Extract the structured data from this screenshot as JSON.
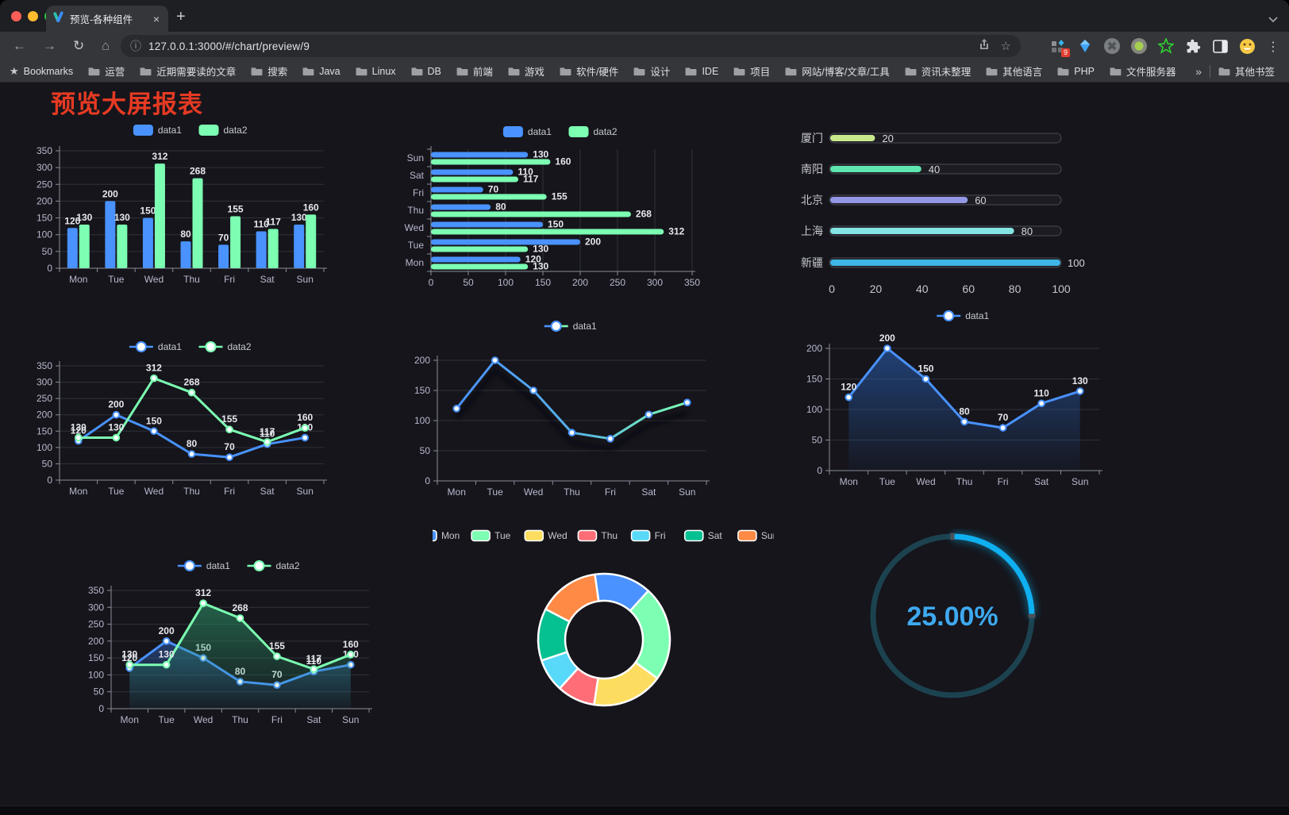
{
  "browser": {
    "traffic_lights": [
      "#ff5f57",
      "#febc2e",
      "#28c840"
    ],
    "tab": {
      "title": "预览-各种组件",
      "close_glyph": "×"
    },
    "new_tab_glyph": "+",
    "url": "127.0.0.1:3000/#/chart/preview/9",
    "icons": {
      "back": "←",
      "forward": "→",
      "reload": "↻",
      "home": "⌂",
      "info": "ⓘ",
      "star": "☆",
      "bookmark_star": "★",
      "menu": "⋮",
      "command": "⌘"
    },
    "extensions": {
      "badge": "9"
    },
    "bookmarks_bar": {
      "root_label": "Bookmarks",
      "folders": [
        "运营",
        "近期需要读的文章",
        "搜索",
        "Java",
        "Linux",
        "DB",
        "前端",
        "游戏",
        "软件/硬件",
        "设计",
        "IDE",
        "项目",
        "网站/博客/文章/工具",
        "资讯未整理",
        "其他语言",
        "PHP",
        "文件服务器"
      ],
      "overflow_glyph": "»",
      "other_bookmarks": "其他书签"
    }
  },
  "page": {
    "title": "预览大屏报表",
    "title_color": "#e63a23",
    "background": "#15151b"
  },
  "palette": {
    "blue": "#4992ff",
    "green": "#7cffb2",
    "yellow": "#fddd60",
    "red": "#ff6e76",
    "cyan": "#58d9f9",
    "teal": "#05c091",
    "orange": "#ff8a45"
  },
  "chart_data": [
    {
      "id": "bar-grouped",
      "type": "bar",
      "categories": [
        "Mon",
        "Tue",
        "Wed",
        "Thu",
        "Fri",
        "Sat",
        "Sun"
      ],
      "series": [
        {
          "name": "data1",
          "color": "#4992ff",
          "values": [
            120,
            200,
            150,
            80,
            70,
            110,
            130
          ]
        },
        {
          "name": "data2",
          "color": "#7cffb2",
          "values": [
            130,
            130,
            312,
            268,
            155,
            117,
            160
          ]
        }
      ],
      "ylim": [
        0,
        350
      ],
      "yticks": [
        0,
        50,
        100,
        150,
        200,
        250,
        300,
        350
      ],
      "legend": "top",
      "value_labels": true,
      "grid": true
    },
    {
      "id": "bar-horizontal",
      "type": "hbar",
      "categories": [
        "Mon",
        "Tue",
        "Wed",
        "Thu",
        "Fri",
        "Sat",
        "Sun"
      ],
      "series": [
        {
          "name": "data1",
          "color": "#4992ff",
          "values": [
            120,
            200,
            150,
            80,
            70,
            110,
            130
          ]
        },
        {
          "name": "data2",
          "color": "#7cffb2",
          "values": [
            130,
            130,
            312,
            268,
            155,
            117,
            160
          ]
        }
      ],
      "xlim": [
        0,
        350
      ],
      "xticks": [
        0,
        50,
        100,
        150,
        200,
        250,
        300,
        350
      ],
      "legend": "top",
      "value_labels": true,
      "grid": true
    },
    {
      "id": "progress-list",
      "type": "progress",
      "categories": [
        "厦门",
        "南阳",
        "北京",
        "上海",
        "新疆"
      ],
      "values": [
        20,
        40,
        60,
        80,
        100
      ],
      "colors": [
        "#c8e98a",
        "#5ee6af",
        "#9297e6",
        "#84e4e1",
        "#3eb6e6"
      ],
      "xlim": [
        0,
        100
      ],
      "xticks": [
        0,
        20,
        40,
        60,
        80,
        100
      ],
      "value_labels": true
    },
    {
      "id": "line-two-series",
      "type": "line",
      "categories": [
        "Mon",
        "Tue",
        "Wed",
        "Thu",
        "Fri",
        "Sat",
        "Sun"
      ],
      "series": [
        {
          "name": "data1",
          "color": "#4992ff",
          "values": [
            120,
            200,
            150,
            80,
            70,
            110,
            130
          ]
        },
        {
          "name": "data2",
          "color": "#7cffb2",
          "values": [
            130,
            130,
            312,
            268,
            155,
            117,
            160
          ]
        }
      ],
      "ylim": [
        0,
        350
      ],
      "yticks": [
        0,
        50,
        100,
        150,
        200,
        250,
        300,
        350
      ],
      "legend": "top",
      "value_labels": true,
      "markers": true,
      "grid": true
    },
    {
      "id": "line-gradient",
      "type": "line",
      "categories": [
        "Mon",
        "Tue",
        "Wed",
        "Thu",
        "Fri",
        "Sat",
        "Sun"
      ],
      "series": [
        {
          "name": "data1",
          "color": "#4992ff",
          "gradient": [
            "#4992ff",
            "#56b1e8",
            "#7cffb2"
          ],
          "values": [
            120,
            200,
            150,
            80,
            70,
            110,
            130
          ]
        }
      ],
      "ylim": [
        0,
        200
      ],
      "yticks": [
        0,
        50,
        100,
        150,
        200
      ],
      "legend": "top",
      "value_labels": false,
      "markers": true,
      "shadow": true,
      "grid": true
    },
    {
      "id": "area-single",
      "type": "line",
      "categories": [
        "Mon",
        "Tue",
        "Wed",
        "Thu",
        "Fri",
        "Sat",
        "Sun"
      ],
      "series": [
        {
          "name": "data1",
          "color": "#4992ff",
          "area_color": "#2b65c0",
          "values": [
            120,
            200,
            150,
            80,
            70,
            110,
            130
          ]
        }
      ],
      "ylim": [
        0,
        200
      ],
      "yticks": [
        0,
        50,
        100,
        150,
        200
      ],
      "legend": "top",
      "value_labels": true,
      "markers": true,
      "grid": true
    },
    {
      "id": "area-two-series",
      "type": "line",
      "categories": [
        "Mon",
        "Tue",
        "Wed",
        "Thu",
        "Fri",
        "Sat",
        "Sun"
      ],
      "series": [
        {
          "name": "data1",
          "color": "#4992ff",
          "area_color": "#2f5fb0",
          "values": [
            120,
            200,
            150,
            80,
            70,
            110,
            130
          ]
        },
        {
          "name": "data2",
          "color": "#7cffb2",
          "area_color": "#2f9d6f",
          "values": [
            130,
            130,
            312,
            268,
            155,
            117,
            160
          ]
        }
      ],
      "ylim": [
        0,
        350
      ],
      "yticks": [
        0,
        50,
        100,
        150,
        200,
        250,
        300,
        350
      ],
      "legend": "top",
      "value_labels": true,
      "markers": true,
      "grid": true
    },
    {
      "id": "donut-week",
      "type": "pie",
      "categories": [
        "Mon",
        "Tue",
        "Wed",
        "Thu",
        "Fri",
        "Sat",
        "Sun"
      ],
      "values": [
        120,
        200,
        150,
        80,
        70,
        110,
        130
      ],
      "colors": [
        "#4992ff",
        "#7cffb2",
        "#fddd60",
        "#ff6e76",
        "#58d9f9",
        "#05c091",
        "#ff8a45"
      ],
      "legend": "top",
      "inner_radius_ratio": 0.59,
      "start_angle": -8
    },
    {
      "id": "gauge-percent",
      "type": "gauge",
      "value": 25,
      "max": 100,
      "label": "25.00%",
      "arc_color": "#0fb0f0",
      "track_color": "#1c4250",
      "text_color": "#3ea9f0"
    }
  ]
}
